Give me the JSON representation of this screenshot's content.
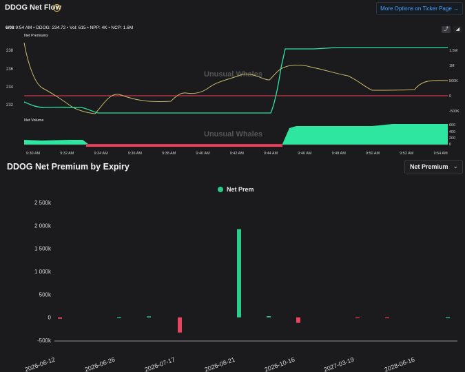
{
  "header": {
    "title": "DDOG Net Flow",
    "info_icon": "info-icon",
    "more_button": "More Options on Ticker Page →"
  },
  "status": {
    "date": "6/08",
    "time": "9:54 AM",
    "ticker": "DDOG: 234.72",
    "vol": "Vol: 615",
    "npp": "NPP: 4K",
    "ncp": "NCP: 1.6M",
    "separator": "•"
  },
  "toggles": {
    "line_icon": "line-chart-icon",
    "area_icon": "area-chart-icon"
  },
  "watermark": "Unusual Whales",
  "colors": {
    "green": "#2ee6a0",
    "red": "#ff3b5c",
    "yellow": "#c9bb6e",
    "bar_green": "#2ecc8b",
    "bar_red": "#e8455e"
  },
  "flow_chart": {
    "premium_label": "Net Premiums",
    "volume_label": "Net Volume",
    "left_ticks": [
      "238",
      "236",
      "234",
      "232"
    ],
    "right_ticks": [
      "1.5M",
      "1M",
      "500K",
      "0",
      "-500K"
    ],
    "volume_ticks": [
      "600",
      "400",
      "200",
      "0"
    ],
    "time_ticks": [
      "9:30 AM",
      "9:32 AM",
      "9:34 AM",
      "9:36 AM",
      "9:38 AM",
      "9:40 AM",
      "9:42 AM",
      "9:44 AM",
      "9:46 AM",
      "9:48 AM",
      "9:50 AM",
      "9:52 AM",
      "9:54 AM"
    ]
  },
  "expiry": {
    "title": "DDOG Net Premium by Expiry",
    "select_value": "Net Premium",
    "chevron_icon": "chevron-down-icon"
  },
  "chart_data": {
    "type": "bar",
    "title": "",
    "legend": [
      "Net Prem"
    ],
    "legend_position": "top-center",
    "ylim": [
      -500,
      2500
    ],
    "y_ticks": [
      "2 500k",
      "2 000k",
      "1 500k",
      "1 000k",
      "500k",
      "0",
      "-500k"
    ],
    "x_tick_labels": [
      "2026-06-12",
      "2026-06-26",
      "2026-07-17",
      "2026-08-21",
      "2026-10-16",
      "2027-03-19",
      "2028-06-16"
    ],
    "series": [
      {
        "name": "Net Prem",
        "x": [
          "2026-06-12",
          "2026-06-26",
          "2026-07-10",
          "2026-07-17",
          "2026-08-21",
          "2026-09-18",
          "2026-10-16",
          "2027-03-19",
          "2027-06-17",
          "2028-06-16"
        ],
        "values": [
          -30,
          5,
          20,
          -330,
          1920,
          25,
          -120,
          -10,
          -10,
          5
        ]
      }
    ],
    "grid": false
  }
}
